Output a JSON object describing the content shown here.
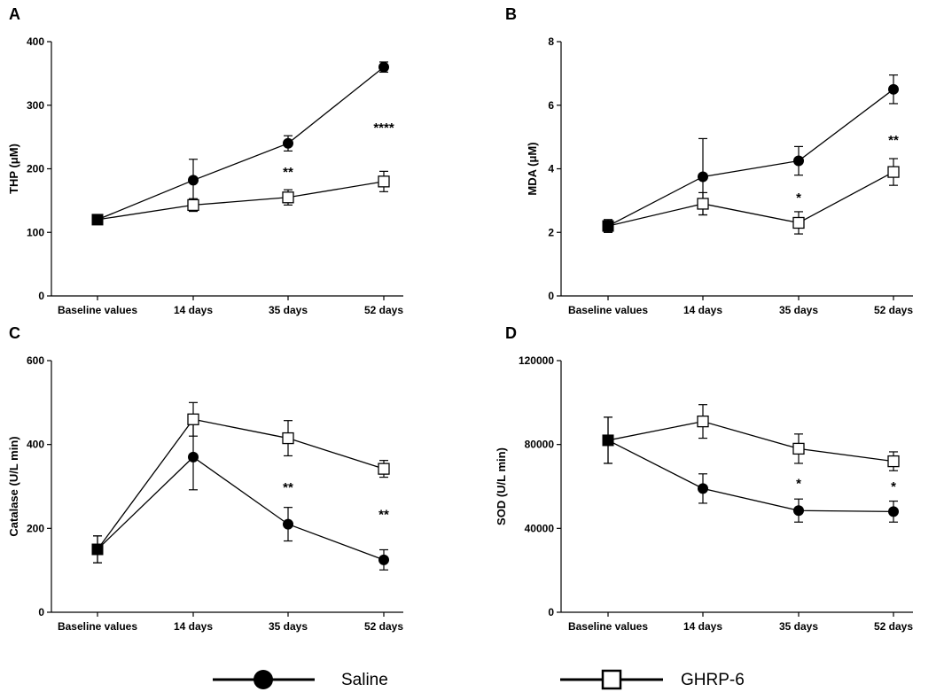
{
  "legend": {
    "saline_label": "Saline",
    "ghrp_label": "GHRP-6"
  },
  "chart_data": [
    {
      "panel": "A",
      "type": "line",
      "ylabel": "THP (μM)",
      "ylim": [
        0,
        400
      ],
      "yticks": [
        "0",
        "100",
        "200",
        "300",
        "400"
      ],
      "categories": [
        "Baseline values",
        "14 days",
        "35 days",
        "52 days"
      ],
      "series": [
        {
          "name": "Saline",
          "marker": "filled-circle",
          "values": [
            120,
            182,
            240,
            360
          ],
          "err": [
            4,
            33,
            12,
            8
          ]
        },
        {
          "name": "GHRP-6",
          "marker": "open-square",
          "values": [
            120,
            143,
            155,
            180
          ],
          "err": [
            4,
            10,
            12,
            16
          ]
        }
      ],
      "annotations": [
        {
          "category": "35 days",
          "text": "**",
          "y": 195
        },
        {
          "category": "52 days",
          "text": "****",
          "y": 265
        }
      ]
    },
    {
      "panel": "B",
      "type": "line",
      "ylabel": "MDA (μM)",
      "ylim": [
        0,
        8
      ],
      "yticks": [
        "0",
        "2",
        "4",
        "6",
        "8"
      ],
      "categories": [
        "Baseline values",
        "14 days",
        "35 days",
        "52 days"
      ],
      "series": [
        {
          "name": "Saline",
          "marker": "filled-circle",
          "values": [
            2.2,
            3.75,
            4.25,
            6.5
          ],
          "err": [
            0.2,
            1.2,
            0.45,
            0.45
          ]
        },
        {
          "name": "GHRP-6",
          "marker": "open-square",
          "values": [
            2.2,
            2.9,
            2.3,
            3.9
          ],
          "err": [
            0.2,
            0.35,
            0.35,
            0.42
          ]
        }
      ],
      "annotations": [
        {
          "category": "35 days",
          "text": "*",
          "y": 3.1
        },
        {
          "category": "52 days",
          "text": "**",
          "y": 4.9
        }
      ]
    },
    {
      "panel": "C",
      "type": "line",
      "ylabel": "Catalase (U/L min)",
      "ylim": [
        0,
        600
      ],
      "yticks": [
        "0",
        "200",
        "400",
        "600"
      ],
      "categories": [
        "Baseline values",
        "14 days",
        "35 days",
        "52 days"
      ],
      "series": [
        {
          "name": "Saline",
          "marker": "filled-circle",
          "values": [
            150,
            370,
            210,
            125
          ],
          "err": [
            32,
            78,
            40,
            24
          ]
        },
        {
          "name": "GHRP-6",
          "marker": "open-square",
          "values": [
            150,
            460,
            415,
            342
          ],
          "err": [
            32,
            40,
            42,
            20
          ]
        }
      ],
      "annotations": [
        {
          "category": "35 days",
          "text": "**",
          "y": 298
        },
        {
          "category": "52 days",
          "text": "**",
          "y": 233
        }
      ]
    },
    {
      "panel": "D",
      "type": "line",
      "ylabel": "SOD (U/L min)",
      "ylim": [
        0,
        120000
      ],
      "yticks": [
        "0",
        "40000",
        "80000",
        "120000"
      ],
      "categories": [
        "Baseline values",
        "14 days",
        "35 days",
        "52 days"
      ],
      "series": [
        {
          "name": "Saline",
          "marker": "filled-circle",
          "values": [
            82000,
            59000,
            48500,
            48000
          ],
          "err": [
            11000,
            7000,
            5500,
            5000
          ]
        },
        {
          "name": "GHRP-6",
          "marker": "open-square",
          "values": [
            82000,
            91000,
            78000,
            72000
          ],
          "err": [
            11000,
            8000,
            7000,
            4500
          ]
        }
      ],
      "annotations": [
        {
          "category": "35 days",
          "text": "*",
          "y": 61500
        },
        {
          "category": "52 days",
          "text": "*",
          "y": 60000
        }
      ]
    }
  ]
}
